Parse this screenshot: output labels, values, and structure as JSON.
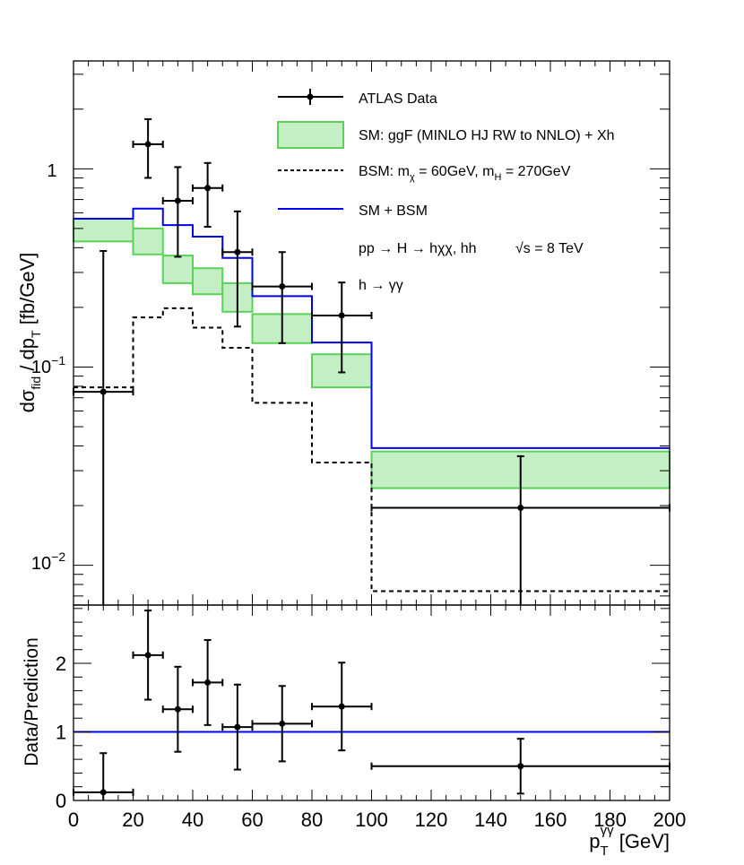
{
  "chart_data": [
    {
      "type": "line",
      "panel": "main",
      "yscale": "log",
      "ylim": [
        0.0063,
        3.5
      ],
      "xlim": [
        0,
        200
      ],
      "ylabel": "dσfid / dpT [fb/GeV]",
      "ylabel_parts": {
        "a": "dσ",
        "a_sub": "fid",
        "b": " / dp",
        "b_sub": "T",
        "c": " [fb/GeV]"
      },
      "y_tick_labels": [
        {
          "value": 1,
          "base": "1",
          "exp": ""
        },
        {
          "value": 0.1,
          "base": "10",
          "exp": "−1"
        },
        {
          "value": 0.01,
          "base": "10",
          "exp": "−2"
        }
      ],
      "bin_edges": [
        0,
        20,
        30,
        40,
        50,
        60,
        80,
        100,
        200
      ],
      "series": [
        {
          "name": "ATLAS Data",
          "kind": "points",
          "x": [
            10,
            25,
            35,
            45,
            55,
            70,
            90,
            150
          ],
          "xerr": [
            10,
            5,
            5,
            5,
            5,
            10,
            10,
            50
          ],
          "y": [
            0.075,
            1.33,
            0.69,
            0.8,
            0.38,
            0.255,
            0.182,
            0.0195
          ],
          "yerr_up": [
            0.31,
            0.45,
            0.33,
            0.27,
            0.23,
            0.125,
            0.085,
            0.016
          ],
          "yerr_down": [
            0.075,
            0.43,
            0.33,
            0.29,
            0.22,
            0.123,
            0.088,
            0.0195
          ]
        },
        {
          "name": "SM: ggF (MINLO HJ RW to NNLO) + Xh",
          "kind": "band",
          "color": "#5ad25a",
          "fill": "#c4eec4",
          "low": [
            0.43,
            0.37,
            0.265,
            0.233,
            0.19,
            0.132,
            0.079,
            0.0245
          ],
          "high": [
            0.56,
            0.5,
            0.365,
            0.315,
            0.265,
            0.185,
            0.116,
            0.0375
          ]
        },
        {
          "name": "BSM: mχ = 60GeV, mH = 270GeV",
          "kind": "step",
          "style": "dashed",
          "color": "#000000",
          "values": [
            0.079,
            0.178,
            0.198,
            0.158,
            0.125,
            0.066,
            0.033,
            0.0074
          ]
        },
        {
          "name": "SM + BSM",
          "kind": "step",
          "style": "solid",
          "color": "#0000ee",
          "values": [
            0.56,
            0.63,
            0.52,
            0.455,
            0.355,
            0.228,
            0.133,
            0.039
          ]
        }
      ],
      "legend": {
        "data": "ATLAS Data",
        "sm": "SM: ggF (MINLO HJ RW to NNLO) + Xh",
        "bsm": {
          "a": "BSM: m",
          "a_sub": "χ",
          "b": " = 60GeV, m",
          "b_sub": "H",
          "c": " = 270GeV"
        },
        "sum": "SM + BSM"
      },
      "annotations": [
        "pp → H → hχχ, hh",
        "√s = 8 TeV",
        "h → γγ"
      ]
    },
    {
      "type": "scatter",
      "panel": "ratio",
      "ylabel": "Data/Prediction",
      "ylim": [
        0,
        2.85
      ],
      "y_ticks": [
        0,
        1,
        2
      ],
      "reference_line": 1,
      "x": [
        10,
        25,
        35,
        45,
        55,
        70,
        90,
        150
      ],
      "xerr": [
        10,
        5,
        5,
        5,
        5,
        10,
        10,
        50
      ],
      "y": [
        0.12,
        2.12,
        1.33,
        1.72,
        1.07,
        1.12,
        1.37,
        0.5
      ],
      "yerr": [
        0.57,
        0.65,
        0.62,
        0.62,
        0.62,
        0.55,
        0.64,
        0.4
      ]
    }
  ],
  "x_axis": {
    "label_main": "p",
    "label_sub": "T",
    "label_sup": "γγ",
    "label_unit": " [GeV]",
    "ticks": [
      0,
      20,
      40,
      60,
      80,
      100,
      120,
      140,
      160,
      180,
      200
    ]
  }
}
